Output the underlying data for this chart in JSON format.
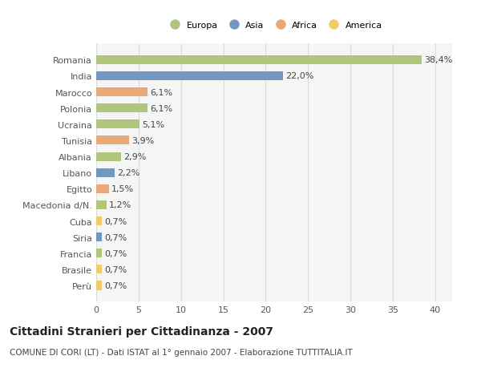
{
  "categories": [
    "Romania",
    "India",
    "Marocco",
    "Polonia",
    "Ucraina",
    "Tunisia",
    "Albania",
    "Libano",
    "Egitto",
    "Macedonia d/N.",
    "Cuba",
    "Siria",
    "Francia",
    "Brasile",
    "Perù"
  ],
  "values": [
    38.4,
    22.0,
    6.1,
    6.1,
    5.1,
    3.9,
    2.9,
    2.2,
    1.5,
    1.2,
    0.7,
    0.7,
    0.7,
    0.7,
    0.7
  ],
  "labels": [
    "38,4%",
    "22,0%",
    "6,1%",
    "6,1%",
    "5,1%",
    "3,9%",
    "2,9%",
    "2,2%",
    "1,5%",
    "1,2%",
    "0,7%",
    "0,7%",
    "0,7%",
    "0,7%",
    "0,7%"
  ],
  "continents": [
    "Europa",
    "Asia",
    "Africa",
    "Europa",
    "Europa",
    "Africa",
    "Europa",
    "Asia",
    "Africa",
    "Europa",
    "America",
    "Asia",
    "Europa",
    "America",
    "America"
  ],
  "continent_colors": {
    "Europa": "#afc47d",
    "Asia": "#7398c0",
    "Africa": "#e8a878",
    "America": "#f0cc6a"
  },
  "legend_order": [
    "Europa",
    "Asia",
    "Africa",
    "America"
  ],
  "title": "Cittadini Stranieri per Cittadinanza - 2007",
  "subtitle": "COMUNE DI CORI (LT) - Dati ISTAT al 1° gennaio 2007 - Elaborazione TUTTITALIA.IT",
  "xlim": [
    0,
    42
  ],
  "xticks": [
    0,
    5,
    10,
    15,
    20,
    25,
    30,
    35,
    40
  ],
  "background_color": "#ffffff",
  "plot_bg_color": "#f5f5f5",
  "grid_color": "#dddddd",
  "bar_height": 0.55,
  "label_fontsize": 8,
  "tick_fontsize": 8,
  "title_fontsize": 10,
  "subtitle_fontsize": 7.5
}
